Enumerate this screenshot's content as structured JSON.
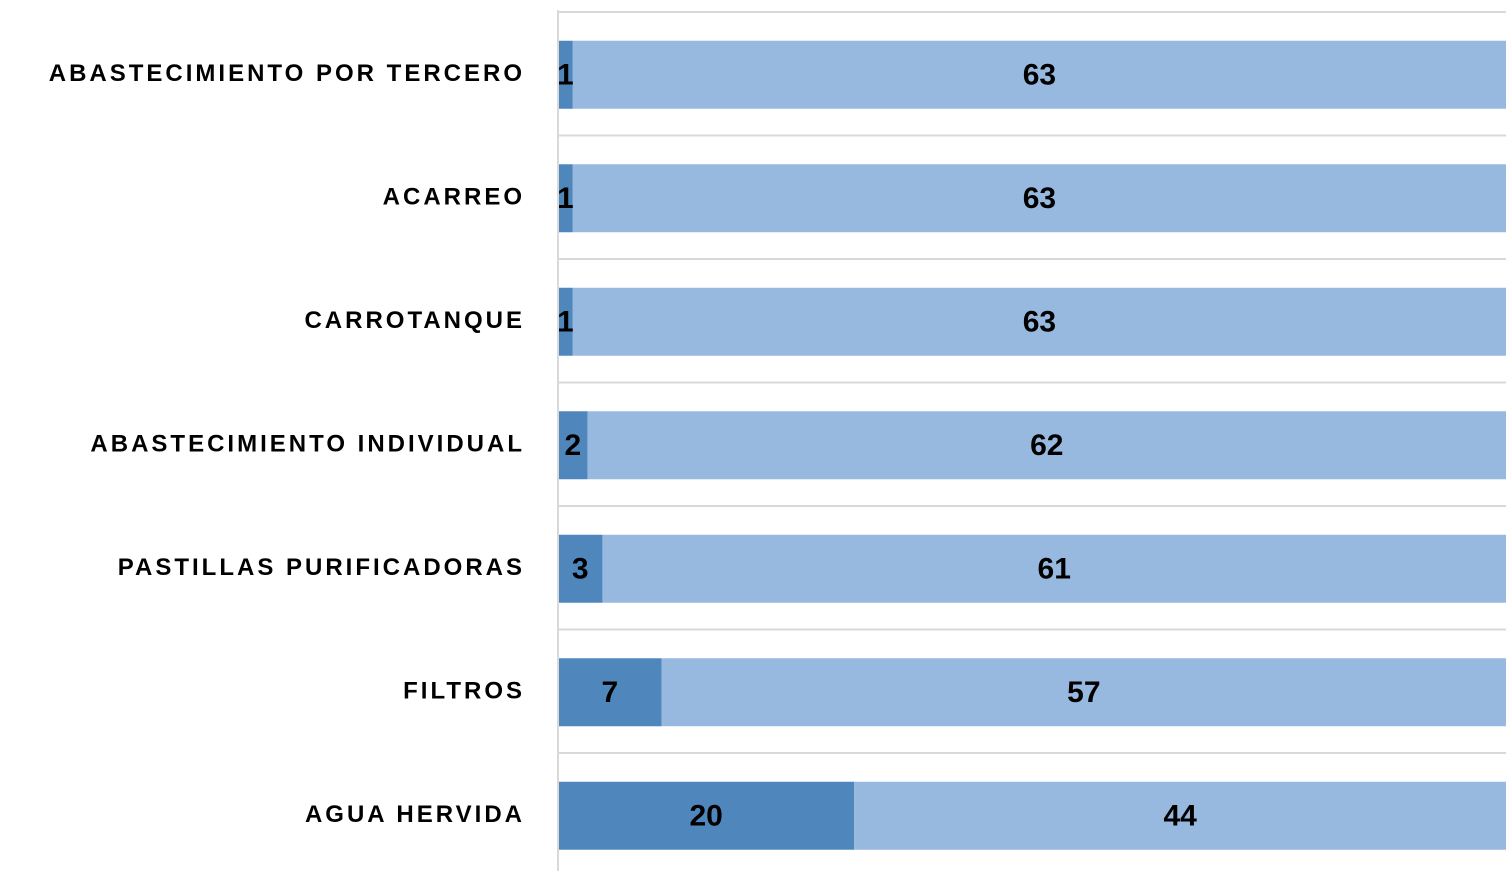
{
  "chart_data": {
    "type": "stacked-barh",
    "categories": [
      "ABASTECIMIENTO POR TERCERO",
      "ACARREO",
      "CARROTANQUE",
      "ABASTECIMIENTO INDIVIDUAL",
      "PASTILLAS PURIFICADORAS",
      "FILTROS",
      "AGUA HERVIDA"
    ],
    "series": [
      {
        "color": "#4f87bc",
        "values": [
          1,
          1,
          1,
          2,
          3,
          7,
          20
        ]
      },
      {
        "color": "#98b9df",
        "values": [
          63,
          63,
          63,
          62,
          61,
          57,
          44
        ]
      }
    ],
    "xlim": [
      0,
      64
    ]
  }
}
